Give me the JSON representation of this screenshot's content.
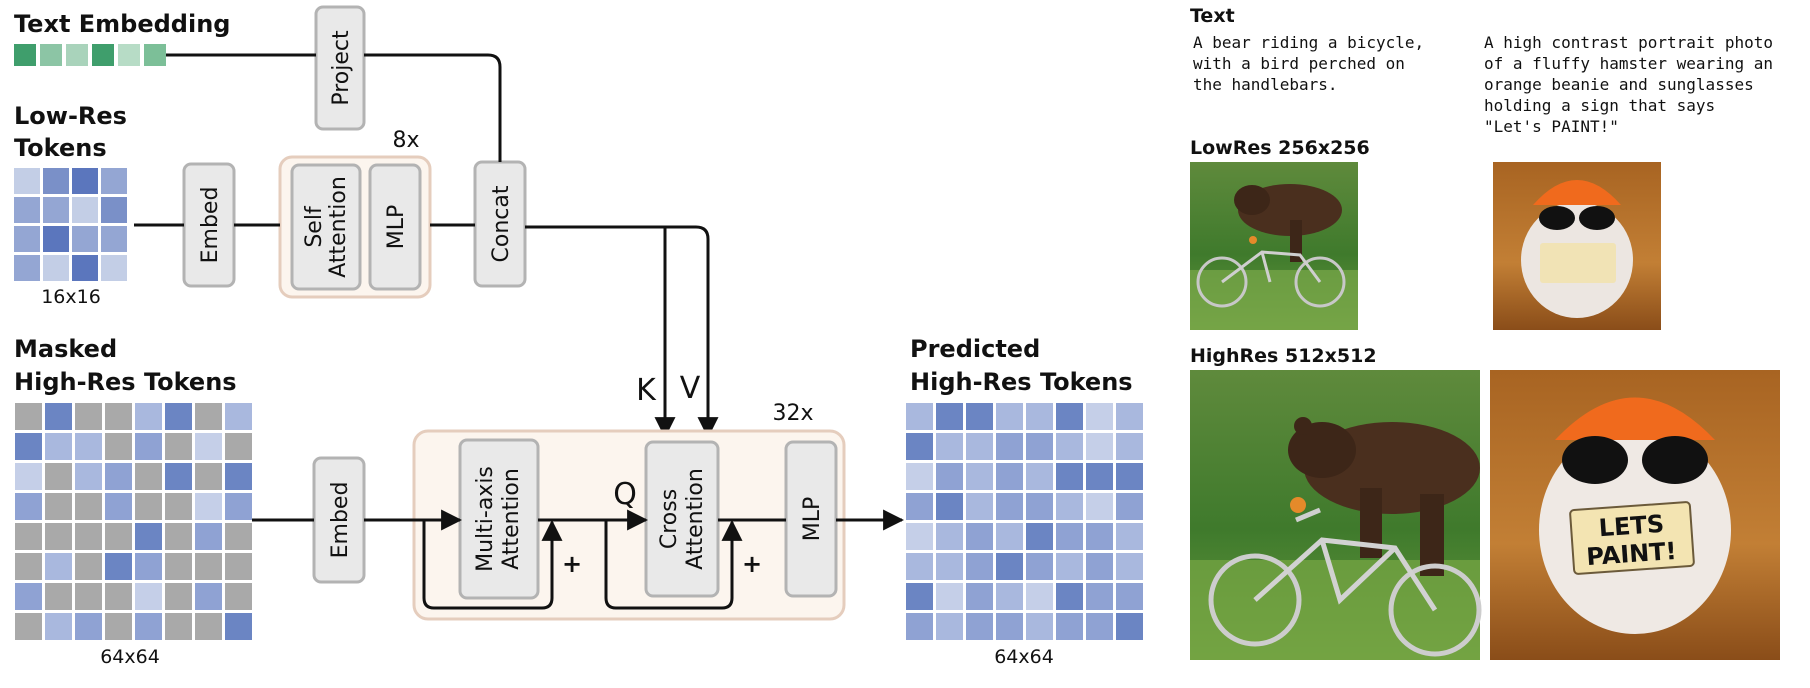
{
  "labels": {
    "text_embedding": "Text Embedding",
    "project": "Project",
    "lowres_tokens_line1": "Low-Res",
    "lowres_tokens_line2": "Tokens",
    "lowres_size": "16x16",
    "embed_top": "Embed",
    "self_attention_line1": "Self",
    "self_attention_line2": "Attention",
    "mlp_top": "MLP",
    "repeat_top": "8x",
    "concat": "Concat",
    "masked_line1": "Masked",
    "masked_line2": "High-Res Tokens",
    "masked_size": "64x64",
    "embed_bottom": "Embed",
    "multiaxis_line1": "Multi-axis",
    "multiaxis_line2": "Attention",
    "cross_line1": "Cross",
    "cross_line2": "Attention",
    "mlp_bottom": "MLP",
    "repeat_bottom": "32x",
    "k": "K",
    "v": "V",
    "q": "Q",
    "plus": "+",
    "predicted_line1": "Predicted",
    "predicted_line2": "High-Res Tokens",
    "predicted_size": "64x64"
  },
  "examples": {
    "text_header": "Text",
    "prompt1_lines": [
      "A bear riding a bicycle,",
      "with a bird perched on",
      "the handlebars."
    ],
    "prompt2_lines": [
      "A high contrast portrait photo",
      "of a fluffy hamster wearing an",
      "orange beanie and sunglasses",
      "holding a sign that says",
      "\"Let's PAINT!\""
    ],
    "lowres_header": "LowRes 256x256",
    "highres_header": "HighRes 512x512",
    "sign_line1": "LETS",
    "sign_line2": "PAINT!"
  },
  "colors": {
    "text_embedding_cells": [
      "#3f9e6c",
      "#8cc5a5",
      "#a9d3bb",
      "#3f9e6c",
      "#b7dcc6",
      "#7cbf98"
    ],
    "lowres_grid": [
      [
        "#c3cee6",
        "#7a90c8",
        "#5b76bd",
        "#94a6d3"
      ],
      [
        "#94a6d3",
        "#94a6d3",
        "#c3cee6",
        "#7a90c8"
      ],
      [
        "#94a6d3",
        "#5b76bd",
        "#94a6d3",
        "#94a6d3"
      ],
      [
        "#94a6d3",
        "#c3cee6",
        "#5b76bd",
        "#c3cee6"
      ]
    ],
    "masked_grid": [
      [
        "#a9a9a9",
        "#6b85c3",
        "#a9a9a9",
        "#a9a9a9",
        "#a9b8de",
        "#6b85c3",
        "#a9a9a9",
        "#a9b8de"
      ],
      [
        "#6b85c3",
        "#a9b8de",
        "#a9b8de",
        "#a9a9a9",
        "#8fa2d3",
        "#a9a9a9",
        "#c5cfe8",
        "#a9a9a9"
      ],
      [
        "#c5cfe8",
        "#a9a9a9",
        "#a9b8de",
        "#8fa2d3",
        "#a9a9a9",
        "#6b85c3",
        "#a9a9a9",
        "#6b85c3"
      ],
      [
        "#8fa2d3",
        "#a9a9a9",
        "#a9a9a9",
        "#8fa2d3",
        "#a9a9a9",
        "#a9a9a9",
        "#c5cfe8",
        "#8fa2d3"
      ],
      [
        "#a9a9a9",
        "#a9a9a9",
        "#a9a9a9",
        "#a9a9a9",
        "#6b85c3",
        "#a9a9a9",
        "#8fa2d3",
        "#a9a9a9"
      ],
      [
        "#a9a9a9",
        "#a9b8de",
        "#a9a9a9",
        "#6b85c3",
        "#8fa2d3",
        "#a9a9a9",
        "#a9a9a9",
        "#a9a9a9"
      ],
      [
        "#8fa2d3",
        "#a9a9a9",
        "#a9a9a9",
        "#a9a9a9",
        "#c5cfe8",
        "#a9a9a9",
        "#8fa2d3",
        "#a9a9a9"
      ],
      [
        "#a9a9a9",
        "#a9b8de",
        "#8fa2d3",
        "#a9a9a9",
        "#8fa2d3",
        "#a9a9a9",
        "#a9a9a9",
        "#6b85c3"
      ]
    ],
    "predicted_grid": [
      [
        "#a9b8de",
        "#6b85c3",
        "#6b85c3",
        "#a9b8de",
        "#a9b8de",
        "#6b85c3",
        "#c5cfe8",
        "#a9b8de"
      ],
      [
        "#6b85c3",
        "#a9b8de",
        "#a9b8de",
        "#8fa2d3",
        "#8fa2d3",
        "#a9b8de",
        "#c5cfe8",
        "#a9b8de"
      ],
      [
        "#c5cfe8",
        "#8fa2d3",
        "#a9b8de",
        "#8fa2d3",
        "#a9b8de",
        "#6b85c3",
        "#6b85c3",
        "#6b85c3"
      ],
      [
        "#8fa2d3",
        "#6b85c3",
        "#a9b8de",
        "#8fa2d3",
        "#8fa2d3",
        "#a9b8de",
        "#c5cfe8",
        "#8fa2d3"
      ],
      [
        "#c5cfe8",
        "#a9b8de",
        "#8fa2d3",
        "#a9b8de",
        "#6b85c3",
        "#8fa2d3",
        "#8fa2d3",
        "#a9b8de"
      ],
      [
        "#a9b8de",
        "#a9b8de",
        "#8fa2d3",
        "#6b85c3",
        "#8fa2d3",
        "#a9b8de",
        "#8fa2d3",
        "#a9b8de"
      ],
      [
        "#6b85c3",
        "#c5cfe8",
        "#8fa2d3",
        "#a9b8de",
        "#c5cfe8",
        "#6b85c3",
        "#8fa2d3",
        "#8fa2d3"
      ],
      [
        "#8fa2d3",
        "#a9b8de",
        "#8fa2d3",
        "#8fa2d3",
        "#a9b8de",
        "#8fa2d3",
        "#8fa2d3",
        "#6b85c3"
      ]
    ],
    "block_fill": "#e9e9e9",
    "block_stroke": "#b3b3b3",
    "group_fill": "#fcf5ee",
    "group_stroke": "#e5cdbd"
  }
}
